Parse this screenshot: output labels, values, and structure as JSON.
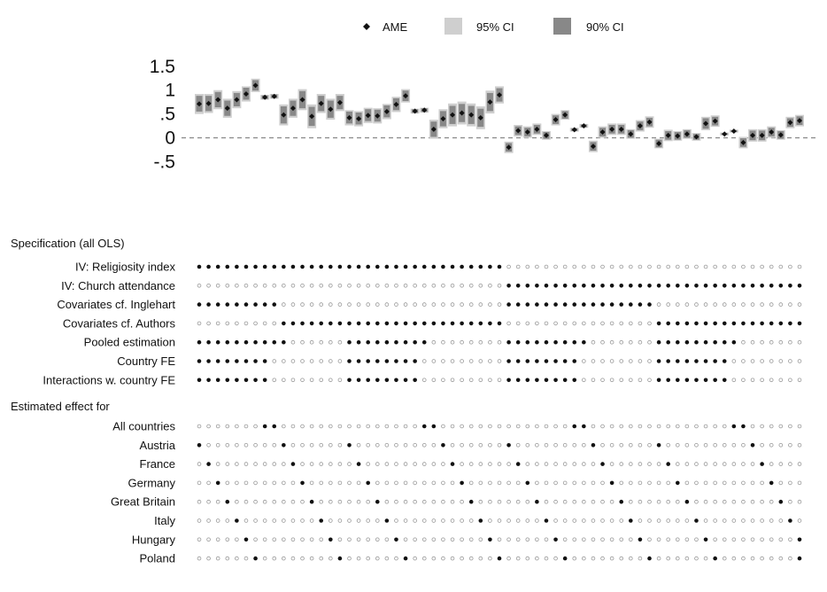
{
  "legend": {
    "ame_label": "AME",
    "ci95_label": "95% CI",
    "ci90_label": "90% CI",
    "colors": {
      "ci95": "#cfcfcf",
      "ci90": "#888888",
      "point": "#111111"
    }
  },
  "chart_data": {
    "type": "scatter",
    "description_ignored": "",
    "title": "",
    "xlabel": "",
    "ylabel": "",
    "ylim": [
      -0.6,
      1.65
    ],
    "yticks": [
      {
        "value": 1.5,
        "label": "1.5"
      },
      {
        "value": 1.0,
        "label": "1"
      },
      {
        "value": 0.5,
        "label": ".5"
      },
      {
        "value": 0.0,
        "label": "0"
      },
      {
        "value": -0.5,
        "label": "-.5"
      }
    ],
    "reference_line": 0,
    "estimates": [
      {
        "ame": 0.71,
        "ci95": [
          0.5,
          0.92
        ],
        "ci90": [
          0.55,
          0.88
        ]
      },
      {
        "ame": 0.72,
        "ci95": [
          0.52,
          0.92
        ],
        "ci90": [
          0.56,
          0.88
        ]
      },
      {
        "ame": 0.8,
        "ci95": [
          0.6,
          1.0
        ],
        "ci90": [
          0.64,
          0.96
        ]
      },
      {
        "ame": 0.62,
        "ci95": [
          0.42,
          0.82
        ],
        "ci90": [
          0.46,
          0.78
        ]
      },
      {
        "ame": 0.8,
        "ci95": [
          0.62,
          0.98
        ],
        "ci90": [
          0.66,
          0.94
        ]
      },
      {
        "ame": 0.92,
        "ci95": [
          0.76,
          1.08
        ],
        "ci90": [
          0.8,
          1.05
        ]
      },
      {
        "ame": 1.1,
        "ci95": [
          0.96,
          1.24
        ],
        "ci90": [
          0.99,
          1.21
        ]
      },
      {
        "ame": 0.85,
        "ci95": [
          0.8,
          0.9
        ],
        "ci90": [
          0.81,
          0.89
        ]
      },
      {
        "ame": 0.87,
        "ci95": [
          0.82,
          0.92
        ],
        "ci90": [
          0.83,
          0.91
        ]
      },
      {
        "ame": 0.48,
        "ci95": [
          0.26,
          0.7
        ],
        "ci90": [
          0.3,
          0.66
        ]
      },
      {
        "ame": 0.62,
        "ci95": [
          0.42,
          0.82
        ],
        "ci90": [
          0.46,
          0.78
        ]
      },
      {
        "ame": 0.8,
        "ci95": [
          0.58,
          1.02
        ],
        "ci90": [
          0.62,
          0.98
        ]
      },
      {
        "ame": 0.45,
        "ci95": [
          0.2,
          0.7
        ],
        "ci90": [
          0.25,
          0.65
        ]
      },
      {
        "ame": 0.72,
        "ci95": [
          0.52,
          0.92
        ],
        "ci90": [
          0.56,
          0.88
        ]
      },
      {
        "ame": 0.6,
        "ci95": [
          0.38,
          0.82
        ],
        "ci90": [
          0.42,
          0.78
        ]
      },
      {
        "ame": 0.74,
        "ci95": [
          0.56,
          0.92
        ],
        "ci90": [
          0.6,
          0.88
        ]
      },
      {
        "ame": 0.42,
        "ci95": [
          0.26,
          0.58
        ],
        "ci90": [
          0.3,
          0.55
        ]
      },
      {
        "ame": 0.4,
        "ci95": [
          0.24,
          0.56
        ],
        "ci90": [
          0.28,
          0.53
        ]
      },
      {
        "ame": 0.47,
        "ci95": [
          0.31,
          0.63
        ],
        "ci90": [
          0.35,
          0.6
        ]
      },
      {
        "ame": 0.46,
        "ci95": [
          0.3,
          0.62
        ],
        "ci90": [
          0.34,
          0.59
        ]
      },
      {
        "ame": 0.55,
        "ci95": [
          0.39,
          0.71
        ],
        "ci90": [
          0.43,
          0.68
        ]
      },
      {
        "ame": 0.7,
        "ci95": [
          0.54,
          0.86
        ],
        "ci90": [
          0.58,
          0.83
        ]
      },
      {
        "ame": 0.88,
        "ci95": [
          0.74,
          1.02
        ],
        "ci90": [
          0.77,
          0.99
        ]
      },
      {
        "ame": 0.56,
        "ci95": [
          0.51,
          0.61
        ],
        "ci90": [
          0.52,
          0.6
        ]
      },
      {
        "ame": 0.58,
        "ci95": [
          0.53,
          0.63
        ],
        "ci90": [
          0.54,
          0.62
        ]
      },
      {
        "ame": 0.18,
        "ci95": [
          -0.02,
          0.38
        ],
        "ci90": [
          0.02,
          0.34
        ]
      },
      {
        "ame": 0.4,
        "ci95": [
          0.2,
          0.6
        ],
        "ci90": [
          0.24,
          0.56
        ]
      },
      {
        "ame": 0.48,
        "ci95": [
          0.24,
          0.72
        ],
        "ci90": [
          0.29,
          0.67
        ]
      },
      {
        "ame": 0.52,
        "ci95": [
          0.28,
          0.76
        ],
        "ci90": [
          0.33,
          0.71
        ]
      },
      {
        "ame": 0.48,
        "ci95": [
          0.24,
          0.72
        ],
        "ci90": [
          0.29,
          0.67
        ]
      },
      {
        "ame": 0.42,
        "ci95": [
          0.18,
          0.66
        ],
        "ci90": [
          0.23,
          0.61
        ]
      },
      {
        "ame": 0.75,
        "ci95": [
          0.51,
          0.99
        ],
        "ci90": [
          0.56,
          0.94
        ]
      },
      {
        "ame": 0.9,
        "ci95": [
          0.72,
          1.08
        ],
        "ci90": [
          0.76,
          1.04
        ]
      },
      {
        "ame": -0.2,
        "ci95": [
          -0.32,
          -0.08
        ],
        "ci90": [
          -0.29,
          -0.11
        ]
      },
      {
        "ame": 0.15,
        "ci95": [
          0.03,
          0.27
        ],
        "ci90": [
          0.06,
          0.24
        ]
      },
      {
        "ame": 0.12,
        "ci95": [
          0.0,
          0.24
        ],
        "ci90": [
          0.03,
          0.21
        ]
      },
      {
        "ame": 0.18,
        "ci95": [
          0.06,
          0.3
        ],
        "ci90": [
          0.09,
          0.27
        ]
      },
      {
        "ame": 0.05,
        "ci95": [
          -0.04,
          0.14
        ],
        "ci90": [
          -0.02,
          0.12
        ]
      },
      {
        "ame": 0.38,
        "ci95": [
          0.26,
          0.5
        ],
        "ci90": [
          0.29,
          0.47
        ]
      },
      {
        "ame": 0.48,
        "ci95": [
          0.38,
          0.58
        ],
        "ci90": [
          0.4,
          0.56
        ]
      },
      {
        "ame": 0.17,
        "ci95": [
          0.13,
          0.21
        ],
        "ci90": [
          0.14,
          0.2
        ]
      },
      {
        "ame": 0.25,
        "ci95": [
          0.21,
          0.29
        ],
        "ci90": [
          0.22,
          0.28
        ]
      },
      {
        "ame": -0.18,
        "ci95": [
          -0.3,
          -0.06
        ],
        "ci90": [
          -0.27,
          -0.09
        ]
      },
      {
        "ame": 0.12,
        "ci95": [
          0.0,
          0.24
        ],
        "ci90": [
          0.03,
          0.21
        ]
      },
      {
        "ame": 0.18,
        "ci95": [
          0.06,
          0.3
        ],
        "ci90": [
          0.09,
          0.27
        ]
      },
      {
        "ame": 0.18,
        "ci95": [
          0.06,
          0.3
        ],
        "ci90": [
          0.09,
          0.27
        ]
      },
      {
        "ame": 0.08,
        "ci95": [
          -0.02,
          0.18
        ],
        "ci90": [
          0.0,
          0.16
        ]
      },
      {
        "ame": 0.25,
        "ci95": [
          0.13,
          0.37
        ],
        "ci90": [
          0.16,
          0.34
        ]
      },
      {
        "ame": 0.33,
        "ci95": [
          0.21,
          0.45
        ],
        "ci90": [
          0.24,
          0.42
        ]
      },
      {
        "ame": -0.12,
        "ci95": [
          -0.22,
          -0.02
        ],
        "ci90": [
          -0.2,
          -0.04
        ]
      },
      {
        "ame": 0.05,
        "ci95": [
          -0.07,
          0.17
        ],
        "ci90": [
          -0.04,
          0.14
        ]
      },
      {
        "ame": 0.04,
        "ci95": [
          -0.06,
          0.14
        ],
        "ci90": [
          -0.04,
          0.12
        ]
      },
      {
        "ame": 0.08,
        "ci95": [
          -0.02,
          0.18
        ],
        "ci90": [
          0.0,
          0.16
        ]
      },
      {
        "ame": 0.02,
        "ci95": [
          -0.06,
          0.1
        ],
        "ci90": [
          -0.04,
          0.08
        ]
      },
      {
        "ame": 0.3,
        "ci95": [
          0.16,
          0.44
        ],
        "ci90": [
          0.19,
          0.41
        ]
      },
      {
        "ame": 0.35,
        "ci95": [
          0.23,
          0.47
        ],
        "ci90": [
          0.26,
          0.44
        ]
      },
      {
        "ame": 0.08,
        "ci95": [
          0.05,
          0.11
        ],
        "ci90": [
          0.06,
          0.1
        ]
      },
      {
        "ame": 0.14,
        "ci95": [
          0.11,
          0.17
        ],
        "ci90": [
          0.12,
          0.16
        ]
      },
      {
        "ame": -0.1,
        "ci95": [
          -0.22,
          0.02
        ],
        "ci90": [
          -0.19,
          -0.01
        ]
      },
      {
        "ame": 0.05,
        "ci95": [
          -0.08,
          0.18
        ],
        "ci90": [
          -0.05,
          0.15
        ]
      },
      {
        "ame": 0.05,
        "ci95": [
          -0.08,
          0.18
        ],
        "ci90": [
          -0.05,
          0.15
        ]
      },
      {
        "ame": 0.12,
        "ci95": [
          0.0,
          0.24
        ],
        "ci90": [
          0.03,
          0.21
        ]
      },
      {
        "ame": 0.06,
        "ci95": [
          -0.04,
          0.16
        ],
        "ci90": [
          -0.02,
          0.14
        ]
      },
      {
        "ame": 0.32,
        "ci95": [
          0.2,
          0.44
        ],
        "ci90": [
          0.23,
          0.41
        ]
      },
      {
        "ame": 0.36,
        "ci95": [
          0.24,
          0.48
        ],
        "ci90": [
          0.27,
          0.45
        ]
      }
    ],
    "spec_section_title": "Specification (all OLS)",
    "specification_rows": [
      {
        "label": "IV: Religiosity index",
        "on": [
          0,
          32
        ]
      },
      {
        "label": "IV: Church attendance",
        "on": [
          33,
          64
        ]
      },
      {
        "label": "Covariates cf. Inglehart",
        "on": [
          0,
          8,
          33,
          40,
          41,
          48
        ]
      },
      {
        "label": "Covariates cf. Authors",
        "on": [
          9,
          32,
          49,
          64
        ]
      },
      {
        "label": "Pooled estimation",
        "on": [
          0,
          9,
          16,
          24,
          33,
          41,
          49,
          57
        ]
      },
      {
        "label": "Country FE",
        "on": [
          0,
          7,
          16,
          23,
          33,
          40,
          49,
          56
        ]
      },
      {
        "label": "Interactions w. country FE",
        "on": [
          0,
          7,
          16,
          23,
          33,
          40,
          49,
          56
        ]
      }
    ],
    "effect_section_title": "Estimated effect for",
    "effect_rows": [
      {
        "label": "All countries",
        "filled": [
          7,
          8,
          24,
          25,
          40,
          41,
          57,
          58
        ]
      },
      {
        "label": "Austria",
        "filled": [
          0,
          9,
          16,
          26,
          33,
          42,
          49,
          59
        ]
      },
      {
        "label": "France",
        "filled": [
          1,
          10,
          17,
          27,
          34,
          43,
          50,
          60
        ]
      },
      {
        "label": "Germany",
        "filled": [
          2,
          11,
          18,
          28,
          35,
          44,
          51,
          61
        ]
      },
      {
        "label": "Great Britain",
        "filled": [
          3,
          12,
          19,
          29,
          36,
          45,
          52,
          62
        ]
      },
      {
        "label": "Italy",
        "filled": [
          4,
          13,
          20,
          30,
          37,
          46,
          53,
          63
        ]
      },
      {
        "label": "Hungary",
        "filled": [
          5,
          14,
          21,
          31,
          38,
          47,
          54,
          64
        ]
      },
      {
        "label": "Poland",
        "filled": [
          6,
          15,
          22,
          32,
          39,
          48,
          55,
          64
        ]
      }
    ]
  }
}
